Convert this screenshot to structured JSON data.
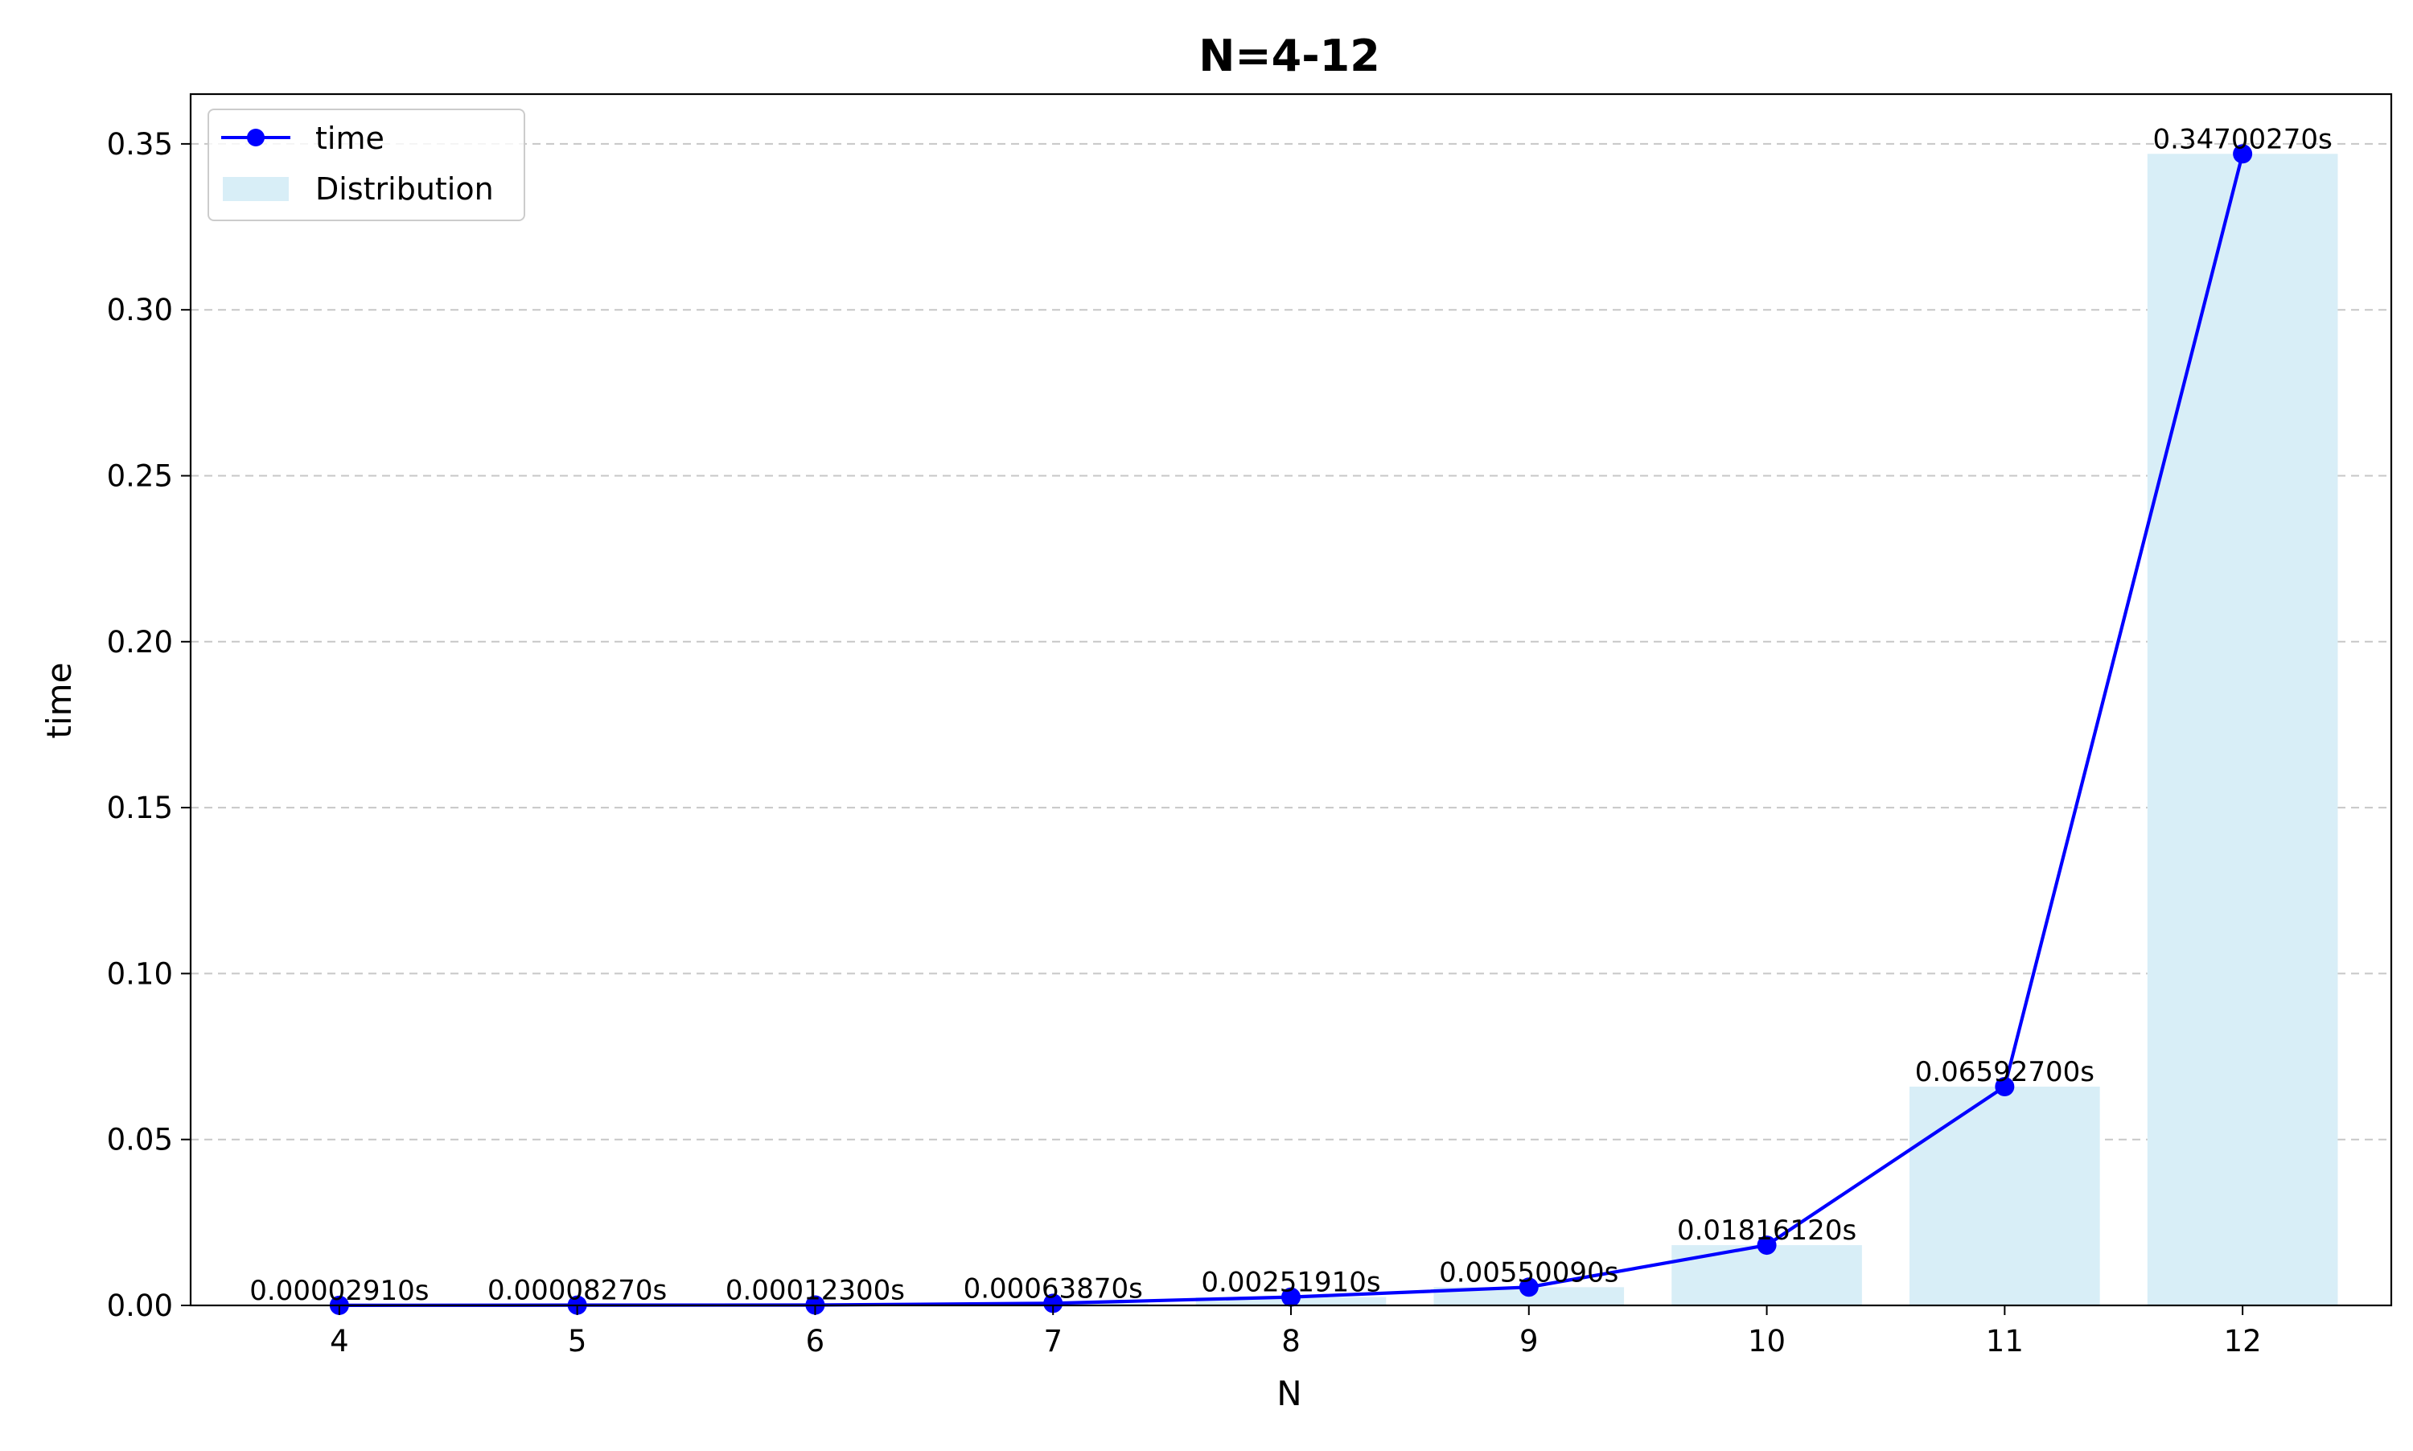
{
  "chart_data": {
    "type": "line",
    "title": "N=4-12",
    "xlabel": "N",
    "ylabel": "time",
    "categories": [
      "4",
      "5",
      "6",
      "7",
      "8",
      "9",
      "10",
      "11",
      "12"
    ],
    "x": [
      4,
      5,
      6,
      7,
      8,
      9,
      10,
      11,
      12
    ],
    "ylim": [
      0,
      0.365
    ],
    "xlim": [
      3.375,
      12.625
    ],
    "yticks": [
      "0.00",
      "0.05",
      "0.10",
      "0.15",
      "0.20",
      "0.25",
      "0.30",
      "0.35"
    ],
    "ytick_values": [
      0,
      0.05,
      0.1,
      0.15,
      0.2,
      0.25,
      0.3,
      0.35
    ],
    "grid": "horizontal dashed",
    "legend_position": "upper-left",
    "series": [
      {
        "name": "time",
        "kind": "line",
        "marker": "circle",
        "color": "#0000ff",
        "values": [
          2.91e-05,
          8.27e-05,
          0.000123,
          0.0006387,
          0.0025191,
          0.0055009,
          0.0181612,
          0.065927,
          0.3470027
        ]
      },
      {
        "name": "Distribution",
        "kind": "bar",
        "color": "#d8eef7",
        "values": [
          2.91e-05,
          8.27e-05,
          0.000123,
          0.0006387,
          0.0025191,
          0.0055009,
          0.0181612,
          0.065927,
          0.3470027
        ]
      }
    ],
    "data_labels": [
      "0.00002910s",
      "0.00008270s",
      "0.00012300s",
      "0.00063870s",
      "0.00251910s",
      "0.00550090s",
      "0.01816120s",
      "0.06592700s",
      "0.34700270s"
    ]
  }
}
